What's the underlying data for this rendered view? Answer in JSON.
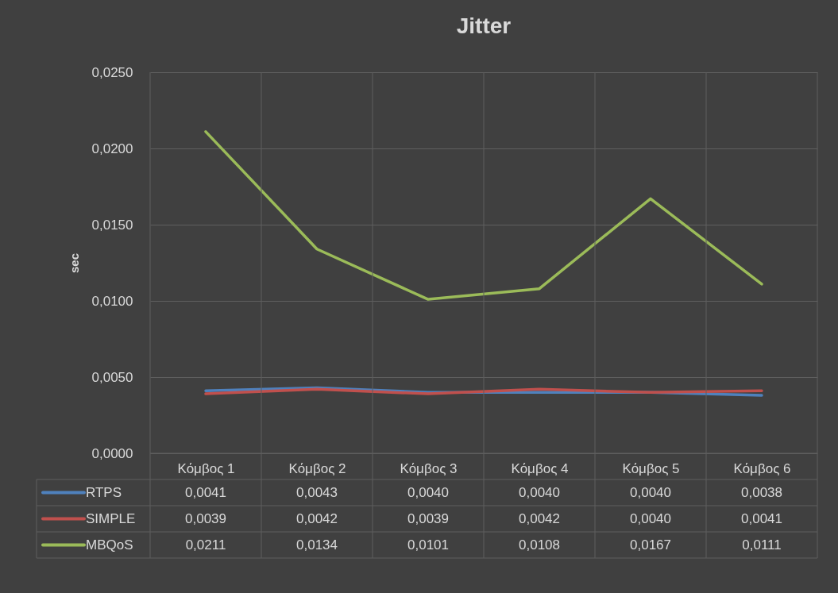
{
  "chart_data": {
    "type": "line",
    "title": "Jitter",
    "ylabel": "sec",
    "categories": [
      "Κόμβος 1",
      "Κόμβος 2",
      "Κόμβος 3",
      "Κόμβος 4",
      "Κόμβος 5",
      "Κόμβος 6"
    ],
    "series": [
      {
        "name": "RTPS",
        "color": "#4f81bd",
        "values": [
          0.0041,
          0.0043,
          0.004,
          0.004,
          0.004,
          0.0038
        ],
        "value_labels": [
          "0,0041",
          "0,0043",
          "0,0040",
          "0,0040",
          "0,0040",
          "0,0038"
        ]
      },
      {
        "name": "SIMPLE",
        "color": "#c0504d",
        "values": [
          0.0039,
          0.0042,
          0.0039,
          0.0042,
          0.004,
          0.0041
        ],
        "value_labels": [
          "0,0039",
          "0,0042",
          "0,0039",
          "0,0042",
          "0,0040",
          "0,0041"
        ]
      },
      {
        "name": "MBQoS",
        "color": "#9bbb59",
        "values": [
          0.0211,
          0.0134,
          0.0101,
          0.0108,
          0.0167,
          0.0111
        ],
        "value_labels": [
          "0,0211",
          "0,0134",
          "0,0101",
          "0,0108",
          "0,0167",
          "0,0111"
        ]
      }
    ],
    "ylim": [
      0,
      0.025
    ],
    "yticks": [
      {
        "value": 0,
        "label": "0,0000"
      },
      {
        "value": 0.005,
        "label": "0,0050"
      },
      {
        "value": 0.01,
        "label": "0,0100"
      },
      {
        "value": 0.015,
        "label": "0,0150"
      },
      {
        "value": 0.02,
        "label": "0,0200"
      },
      {
        "value": 0.025,
        "label": "0,0250"
      }
    ],
    "grid": true,
    "legend": "bottom",
    "marker": "none",
    "line_style": "solid"
  }
}
